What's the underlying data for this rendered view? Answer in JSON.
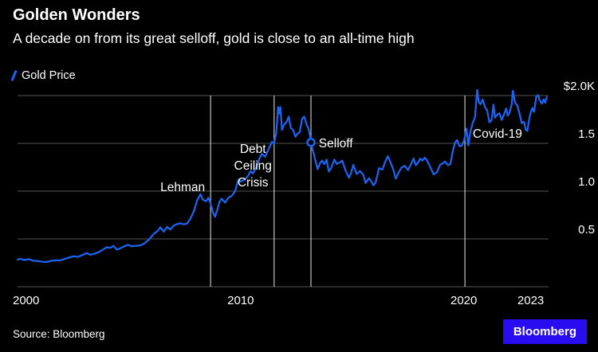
{
  "header": {
    "title": "Golden Wonders",
    "subtitle": "A decade on from its great selloff, gold is close to an all-time high"
  },
  "legend": {
    "label": "Gold Price"
  },
  "footer": {
    "source": "Source: Bloomberg",
    "logo": "Bloomberg"
  },
  "colors": {
    "background": "#000000",
    "line": "#1b64f2",
    "grid": "#555555",
    "event_line": "#e8e8e8",
    "text": "#ffffff",
    "logo_bg": "#2a0cf0",
    "marker_fill": "#000000"
  },
  "chart_data": {
    "type": "line",
    "title": "Golden Wonders",
    "subtitle": "A decade on from its great selloff, gold is close to an all-time high",
    "xlabel": "",
    "ylabel": "",
    "xlim": [
      2000,
      2023.8
    ],
    "ylim": [
      0,
      2.05
    ],
    "grid": "horizontal",
    "legend_position": "top-left",
    "y_units": "$K per ounce",
    "y_gridlines": [
      0,
      0.5,
      1.0,
      1.5,
      2.0
    ],
    "y_ticks": [
      {
        "v": 2.0,
        "label": "$2.0K"
      },
      {
        "v": 1.5,
        "label": "1.5"
      },
      {
        "v": 1.0,
        "label": "1.0"
      },
      {
        "v": 0.5,
        "label": "0.5"
      }
    ],
    "x_ticks": [
      {
        "v": 2000,
        "label": "2000",
        "anchor": "start"
      },
      {
        "v": 2010,
        "label": "2010",
        "anchor": "middle"
      },
      {
        "v": 2020,
        "label": "2020",
        "anchor": "middle"
      },
      {
        "v": 2023,
        "label": "2023",
        "anchor": "middle"
      }
    ],
    "events": [
      {
        "name": "lehman",
        "line_x": 2008.65,
        "label_lines": [
          "Lehman"
        ],
        "label_x": 2008.4,
        "label_y": 1.0,
        "anchor": "end"
      },
      {
        "name": "debt-ceiling-crisis",
        "line_x": 2011.5,
        "label_lines": [
          "Debt",
          "Ceiling",
          "Crisis"
        ],
        "label_x": 2010.55,
        "label_y": 1.4,
        "anchor": "middle"
      },
      {
        "name": "selloff",
        "line_x": 2013.15,
        "label_lines": [
          "Selloff"
        ],
        "label_x": 2013.5,
        "label_y": 1.46,
        "anchor": "start"
      },
      {
        "name": "covid-19",
        "line_x": 2020.05,
        "label_lines": [
          "Covid-19"
        ],
        "label_x": 2020.4,
        "label_y": 1.56,
        "anchor": "start"
      }
    ],
    "marker": {
      "x": 2013.15,
      "y": 1.51
    },
    "series": [
      {
        "name": "Gold Price",
        "points": [
          [
            2000.0,
            0.285
          ],
          [
            2000.15,
            0.292
          ],
          [
            2000.3,
            0.278
          ],
          [
            2000.5,
            0.288
          ],
          [
            2000.7,
            0.272
          ],
          [
            2000.9,
            0.268
          ],
          [
            2001.1,
            0.262
          ],
          [
            2001.3,
            0.258
          ],
          [
            2001.5,
            0.27
          ],
          [
            2001.7,
            0.276
          ],
          [
            2001.9,
            0.274
          ],
          [
            2002.1,
            0.29
          ],
          [
            2002.3,
            0.304
          ],
          [
            2002.5,
            0.318
          ],
          [
            2002.7,
            0.312
          ],
          [
            2002.9,
            0.332
          ],
          [
            2003.1,
            0.352
          ],
          [
            2003.25,
            0.334
          ],
          [
            2003.45,
            0.344
          ],
          [
            2003.65,
            0.363
          ],
          [
            2003.85,
            0.39
          ],
          [
            2004.0,
            0.414
          ],
          [
            2004.15,
            0.406
          ],
          [
            2004.3,
            0.427
          ],
          [
            2004.45,
            0.388
          ],
          [
            2004.6,
            0.402
          ],
          [
            2004.8,
            0.424
          ],
          [
            2004.95,
            0.438
          ],
          [
            2005.1,
            0.423
          ],
          [
            2005.3,
            0.428
          ],
          [
            2005.5,
            0.432
          ],
          [
            2005.7,
            0.456
          ],
          [
            2005.9,
            0.495
          ],
          [
            2006.1,
            0.552
          ],
          [
            2006.3,
            0.588
          ],
          [
            2006.4,
            0.622
          ],
          [
            2006.55,
            0.576
          ],
          [
            2006.7,
            0.625
          ],
          [
            2006.85,
            0.598
          ],
          [
            2007.0,
            0.64
          ],
          [
            2007.15,
            0.655
          ],
          [
            2007.3,
            0.664
          ],
          [
            2007.45,
            0.652
          ],
          [
            2007.6,
            0.662
          ],
          [
            2007.75,
            0.715
          ],
          [
            2007.9,
            0.788
          ],
          [
            2008.05,
            0.905
          ],
          [
            2008.2,
            0.968
          ],
          [
            2008.3,
            0.912
          ],
          [
            2008.45,
            0.895
          ],
          [
            2008.55,
            0.93
          ],
          [
            2008.65,
            0.872
          ],
          [
            2008.75,
            0.78
          ],
          [
            2008.85,
            0.732
          ],
          [
            2008.95,
            0.8
          ],
          [
            2009.05,
            0.885
          ],
          [
            2009.15,
            0.922
          ],
          [
            2009.3,
            0.88
          ],
          [
            2009.45,
            0.93
          ],
          [
            2009.6,
            0.95
          ],
          [
            2009.75,
            1.0
          ],
          [
            2009.9,
            1.12
          ],
          [
            2010.0,
            1.1
          ],
          [
            2010.15,
            1.115
          ],
          [
            2010.3,
            1.15
          ],
          [
            2010.45,
            1.21
          ],
          [
            2010.55,
            1.185
          ],
          [
            2010.7,
            1.25
          ],
          [
            2010.85,
            1.345
          ],
          [
            2010.95,
            1.39
          ],
          [
            2011.1,
            1.36
          ],
          [
            2011.25,
            1.44
          ],
          [
            2011.4,
            1.515
          ],
          [
            2011.5,
            1.5
          ],
          [
            2011.6,
            1.62
          ],
          [
            2011.68,
            1.88
          ],
          [
            2011.73,
            1.81
          ],
          [
            2011.78,
            1.88
          ],
          [
            2011.85,
            1.64
          ],
          [
            2011.95,
            1.7
          ],
          [
            2012.05,
            1.72
          ],
          [
            2012.15,
            1.78
          ],
          [
            2012.25,
            1.66
          ],
          [
            2012.35,
            1.64
          ],
          [
            2012.45,
            1.57
          ],
          [
            2012.55,
            1.6
          ],
          [
            2012.65,
            1.62
          ],
          [
            2012.75,
            1.755
          ],
          [
            2012.85,
            1.78
          ],
          [
            2012.95,
            1.7
          ],
          [
            2013.05,
            1.645
          ],
          [
            2013.12,
            1.565
          ],
          [
            2013.18,
            1.47
          ],
          [
            2013.28,
            1.39
          ],
          [
            2013.33,
            1.335
          ],
          [
            2013.45,
            1.23
          ],
          [
            2013.55,
            1.29
          ],
          [
            2013.65,
            1.32
          ],
          [
            2013.75,
            1.282
          ],
          [
            2013.85,
            1.33
          ],
          [
            2013.95,
            1.205
          ],
          [
            2014.05,
            1.24
          ],
          [
            2014.2,
            1.33
          ],
          [
            2014.3,
            1.285
          ],
          [
            2014.45,
            1.3
          ],
          [
            2014.55,
            1.32
          ],
          [
            2014.7,
            1.215
          ],
          [
            2014.85,
            1.14
          ],
          [
            2014.95,
            1.19
          ],
          [
            2015.05,
            1.275
          ],
          [
            2015.2,
            1.18
          ],
          [
            2015.35,
            1.21
          ],
          [
            2015.5,
            1.17
          ],
          [
            2015.6,
            1.085
          ],
          [
            2015.75,
            1.135
          ],
          [
            2015.85,
            1.105
          ],
          [
            2015.95,
            1.06
          ],
          [
            2016.05,
            1.09
          ],
          [
            2016.2,
            1.24
          ],
          [
            2016.35,
            1.225
          ],
          [
            2016.5,
            1.32
          ],
          [
            2016.6,
            1.365
          ],
          [
            2016.7,
            1.31
          ],
          [
            2016.85,
            1.22
          ],
          [
            2016.95,
            1.13
          ],
          [
            2017.05,
            1.18
          ],
          [
            2017.2,
            1.245
          ],
          [
            2017.35,
            1.265
          ],
          [
            2017.5,
            1.22
          ],
          [
            2017.65,
            1.29
          ],
          [
            2017.75,
            1.342
          ],
          [
            2017.85,
            1.27
          ],
          [
            2017.95,
            1.3
          ],
          [
            2018.05,
            1.34
          ],
          [
            2018.15,
            1.32
          ],
          [
            2018.25,
            1.35
          ],
          [
            2018.35,
            1.322
          ],
          [
            2018.5,
            1.25
          ],
          [
            2018.65,
            1.175
          ],
          [
            2018.8,
            1.2
          ],
          [
            2018.95,
            1.28
          ],
          [
            2019.05,
            1.288
          ],
          [
            2019.15,
            1.31
          ],
          [
            2019.3,
            1.27
          ],
          [
            2019.4,
            1.285
          ],
          [
            2019.5,
            1.41
          ],
          [
            2019.6,
            1.505
          ],
          [
            2019.7,
            1.535
          ],
          [
            2019.8,
            1.47
          ],
          [
            2019.9,
            1.475
          ],
          [
            2020.0,
            1.52
          ],
          [
            2020.05,
            1.57
          ],
          [
            2020.12,
            1.655
          ],
          [
            2020.2,
            1.48
          ],
          [
            2020.3,
            1.625
          ],
          [
            2020.4,
            1.715
          ],
          [
            2020.5,
            1.77
          ],
          [
            2020.57,
            1.98
          ],
          [
            2020.6,
            2.06
          ],
          [
            2020.67,
            1.93
          ],
          [
            2020.75,
            1.91
          ],
          [
            2020.85,
            1.96
          ],
          [
            2020.95,
            1.88
          ],
          [
            2021.05,
            1.845
          ],
          [
            2021.15,
            1.72
          ],
          [
            2021.25,
            1.745
          ],
          [
            2021.33,
            1.905
          ],
          [
            2021.4,
            1.768
          ],
          [
            2021.5,
            1.8
          ],
          [
            2021.6,
            1.815
          ],
          [
            2021.7,
            1.745
          ],
          [
            2021.8,
            1.8
          ],
          [
            2021.9,
            1.865
          ],
          [
            2021.97,
            1.79
          ],
          [
            2022.05,
            1.82
          ],
          [
            2022.15,
            1.91
          ],
          [
            2022.2,
            2.05
          ],
          [
            2022.3,
            1.925
          ],
          [
            2022.4,
            1.895
          ],
          [
            2022.5,
            1.81
          ],
          [
            2022.6,
            1.71
          ],
          [
            2022.7,
            1.725
          ],
          [
            2022.78,
            1.64
          ],
          [
            2022.85,
            1.632
          ],
          [
            2022.93,
            1.755
          ],
          [
            2023.0,
            1.825
          ],
          [
            2023.08,
            1.87
          ],
          [
            2023.15,
            1.83
          ],
          [
            2023.25,
            1.99
          ],
          [
            2023.33,
            2.005
          ],
          [
            2023.4,
            1.955
          ],
          [
            2023.5,
            1.915
          ],
          [
            2023.58,
            1.96
          ],
          [
            2023.65,
            1.925
          ],
          [
            2023.72,
            1.985
          ]
        ]
      }
    ]
  }
}
